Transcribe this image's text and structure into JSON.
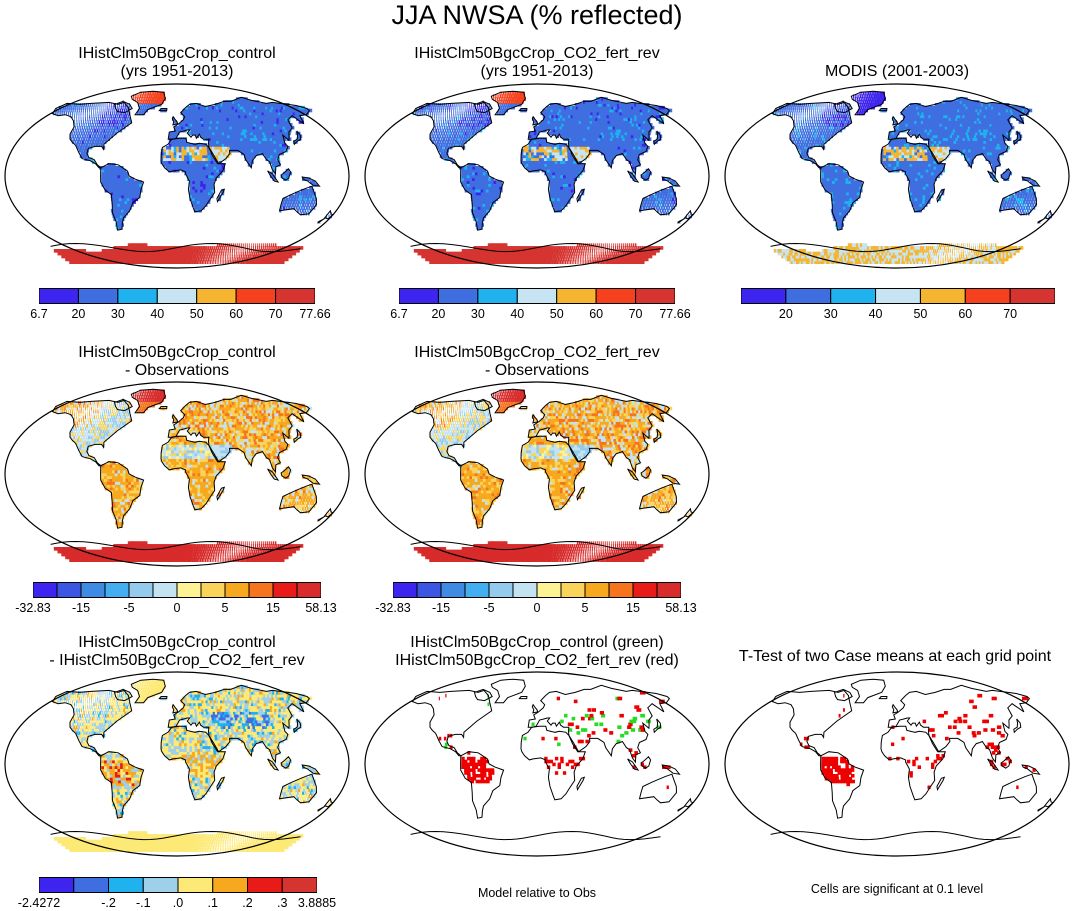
{
  "page_title": "JJA NWSA (% reflected)",
  "colors": {
    "abs": [
      "#3d24ee",
      "#3f6ee0",
      "#1fb2ef",
      "#c7e4f2",
      "#f5b530",
      "#f5411d",
      "#d63430"
    ],
    "diff": [
      "#3d24ee",
      "#3a56e3",
      "#3f8ae3",
      "#43aef0",
      "#94cbec",
      "#c3e3f2",
      "#fdf394",
      "#fad45a",
      "#f6a81f",
      "#f5741d",
      "#e81b18",
      "#d82b2b"
    ],
    "diff3": [
      "#3d24ee",
      "#3f6ee0",
      "#1fb2ef",
      "#9ed0ea",
      "#fde976",
      "#f6a81f",
      "#e81b18",
      "#d63430"
    ],
    "land_outline": "#000000",
    "green": "#22dd22",
    "red": "#ee0000"
  },
  "panels": [
    {
      "name": "control",
      "title": [
        "IHistClm50BgcCrop_control",
        "(yrs 1951-2013)"
      ],
      "style": "abs",
      "labels": [
        "6.7",
        "20",
        "30",
        "40",
        "50",
        "60",
        "70",
        "77.66"
      ]
    },
    {
      "name": "co2-fert-rev",
      "title": [
        "IHistClm50BgcCrop_CO2_fert_rev",
        "(yrs 1951-2013)"
      ],
      "style": "abs",
      "labels": [
        "6.7",
        "20",
        "30",
        "40",
        "50",
        "60",
        "70",
        "77.66"
      ]
    },
    {
      "name": "modis",
      "title": [
        "MODIS (2001-2003)"
      ],
      "style": "modis",
      "labels": [
        "20",
        "30",
        "40",
        "50",
        "60",
        "70"
      ]
    },
    {
      "name": "control-minus-obs",
      "title": [
        "IHistClm50BgcCrop_control",
        "- Observations"
      ],
      "style": "bias",
      "labels": [
        "-32.83",
        "-15",
        "-5",
        "0",
        "5",
        "15",
        "58.13"
      ]
    },
    {
      "name": "co2-minus-obs",
      "title": [
        "IHistClm50BgcCrop_CO2_fert_rev",
        "- Observations"
      ],
      "style": "bias",
      "labels": [
        "-32.83",
        "-15",
        "-5",
        "0",
        "5",
        "15",
        "58.13"
      ]
    },
    {
      "name": "control-minus-co2",
      "title": [
        "IHistClm50BgcCrop_control",
        "- IHistClm50BgcCrop_CO2_fert_rev"
      ],
      "style": "diff",
      "labels": [
        "-2.4272",
        "-.2",
        "-.1",
        ".0",
        ".1",
        ".2",
        ".3",
        "3.8885"
      ]
    },
    {
      "name": "model-rel-obs",
      "title": [
        "IHistClm50BgcCrop_control (green)",
        "IHistClm50BgcCrop_CO2_fert_rev (red)"
      ],
      "style": "greenred",
      "note": "Model relative to Obs"
    },
    {
      "name": "ttest",
      "title": [
        "T-Test of two Case means at each grid point"
      ],
      "style": "ttest",
      "note": "Cells are significant at 0.1 level"
    }
  ]
}
